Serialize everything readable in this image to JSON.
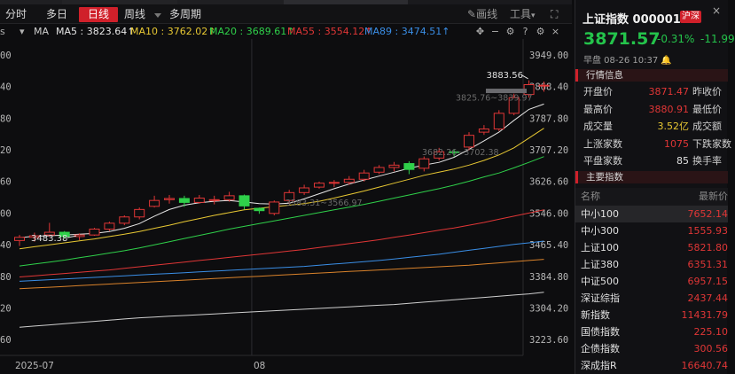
{
  "toolbar": {
    "tabs": [
      {
        "label": "分时",
        "active": false
      },
      {
        "label": "多日",
        "active": false
      },
      {
        "label": "日线",
        "active": true
      },
      {
        "label": "周线",
        "active": false
      },
      {
        "label": "多周期",
        "active": false
      }
    ],
    "draw_label": "画线",
    "tools_label": "工具"
  },
  "ma_bar": {
    "prefix": "MA",
    "items": [
      {
        "text": "MA5 : 3823.64↑",
        "color": "#e6e6e6"
      },
      {
        "text": "MA10 : 3762.02↑",
        "color": "#e8c833"
      },
      {
        "text": "MA20 : 3689.61↑",
        "color": "#2fd04a"
      },
      {
        "text": "MA55 : 3554.12↑",
        "color": "#e03636"
      },
      {
        "text": "MA89 : 3474.51↑",
        "color": "#3a8ee6"
      }
    ]
  },
  "chart_data": {
    "type": "candlestick",
    "y_ticks": [
      "3949.00",
      "3868.40",
      "3787.80",
      "3707.20",
      "3626.60",
      "3546.00",
      "3465.40",
      "3384.80",
      "3304.20",
      "3223.60"
    ],
    "ylim": [
      3183.3,
      3989.3
    ],
    "x_labels": [
      {
        "text": "2025-07",
        "index": 0
      },
      {
        "text": "08",
        "index": 15.5
      }
    ],
    "annotations": [
      {
        "text": "3883.56",
        "type": "high"
      },
      {
        "text": "3483.38",
        "type": "low"
      },
      {
        "text": "3825.76~3839.97",
        "type": "range"
      },
      {
        "text": "3583.31~3566.97",
        "type": "range"
      },
      {
        "text": "3682.26~3702.38",
        "type": "range"
      }
    ],
    "candles": [
      [
        3476,
        3484,
        3462,
        3490
      ],
      [
        3484,
        3488,
        3473,
        3496
      ],
      [
        3490,
        3497,
        3485,
        3521
      ],
      [
        3497,
        3486,
        3480,
        3500
      ],
      [
        3486,
        3490,
        3477,
        3494
      ],
      [
        3490,
        3505,
        3488,
        3508
      ],
      [
        3505,
        3520,
        3500,
        3524
      ],
      [
        3520,
        3536,
        3515,
        3540
      ],
      [
        3536,
        3555,
        3530,
        3560
      ],
      [
        3563,
        3578,
        3560,
        3590
      ],
      [
        3580,
        3583,
        3570,
        3592
      ],
      [
        3583,
        3573,
        3562,
        3590
      ],
      [
        3573,
        3584,
        3570,
        3592
      ],
      [
        3580,
        3580,
        3568,
        3590
      ],
      [
        3580,
        3590,
        3575,
        3600
      ],
      [
        3590,
        3564,
        3555,
        3593
      ],
      [
        3558,
        3552,
        3544,
        3560
      ],
      [
        3545,
        3574,
        3540,
        3578
      ],
      [
        3578,
        3598,
        3570,
        3605
      ],
      [
        3598,
        3610,
        3592,
        3618
      ],
      [
        3612,
        3622,
        3608,
        3626
      ],
      [
        3622,
        3624,
        3612,
        3630
      ],
      [
        3624,
        3632,
        3618,
        3640
      ],
      [
        3632,
        3648,
        3626,
        3656
      ],
      [
        3650,
        3662,
        3645,
        3668
      ],
      [
        3662,
        3668,
        3652,
        3676
      ],
      [
        3672,
        3657,
        3645,
        3678
      ],
      [
        3660,
        3684,
        3652,
        3690
      ],
      [
        3686,
        3702,
        3680,
        3712
      ],
      [
        3702,
        3700,
        3690,
        3708
      ],
      [
        3714,
        3744,
        3706,
        3752
      ],
      [
        3752,
        3760,
        3745,
        3770
      ],
      [
        3760,
        3800,
        3755,
        3808
      ],
      [
        3800,
        3840,
        3795,
        3850
      ],
      [
        3848,
        3873,
        3840,
        3884
      ],
      [
        3871.47,
        3871.57,
        3855,
        3880.91
      ]
    ],
    "series": [
      {
        "name": "MA5",
        "color": "#e6e6e6",
        "values": [
          3483,
          3487,
          3488,
          3490,
          3492,
          3494,
          3499,
          3507,
          3519,
          3538,
          3555,
          3566,
          3572,
          3576,
          3578,
          3574,
          3570,
          3569,
          3571,
          3582,
          3595,
          3608,
          3620,
          3630,
          3640,
          3650,
          3660,
          3668,
          3675,
          3688,
          3708,
          3730,
          3752,
          3782,
          3810,
          3823.64
        ]
      },
      {
        "name": "MA10",
        "color": "#e8c833",
        "values": [
          3455,
          3460,
          3465,
          3470,
          3475,
          3480,
          3486,
          3492,
          3499,
          3507,
          3515,
          3524,
          3532,
          3540,
          3547,
          3554,
          3558,
          3562,
          3566,
          3570,
          3576,
          3584,
          3593,
          3602,
          3612,
          3622,
          3632,
          3642,
          3650,
          3658,
          3668,
          3680,
          3694,
          3712,
          3737,
          3762.02
        ]
      },
      {
        "name": "MA20",
        "color": "#2fd04a",
        "values": [
          3411,
          3416,
          3421,
          3426,
          3432,
          3438,
          3444,
          3450,
          3457,
          3465,
          3473,
          3481,
          3489,
          3497,
          3505,
          3512,
          3519,
          3526,
          3533,
          3540,
          3547,
          3554,
          3561,
          3568,
          3576,
          3584,
          3592,
          3600,
          3608,
          3617,
          3627,
          3638,
          3648,
          3661,
          3675,
          3689.61
        ]
      },
      {
        "name": "MA55",
        "color": "#e03636",
        "values": [
          3383,
          3386,
          3389,
          3392,
          3395,
          3398,
          3401,
          3405,
          3409,
          3413,
          3417,
          3421,
          3425,
          3429,
          3433,
          3437,
          3441,
          3445,
          3449,
          3453,
          3458,
          3463,
          3468,
          3473,
          3478,
          3484,
          3490,
          3496,
          3502,
          3508,
          3515,
          3522,
          3530,
          3538,
          3546,
          3554.12
        ]
      },
      {
        "name": "MA89",
        "color": "#3a8ee6",
        "values": [
          3372,
          3374,
          3376,
          3378,
          3380,
          3382,
          3384,
          3386,
          3388,
          3390,
          3392,
          3394,
          3396,
          3398,
          3400,
          3402,
          3404,
          3406,
          3408,
          3410,
          3413,
          3416,
          3419,
          3422,
          3425,
          3429,
          3433,
          3437,
          3441,
          3446,
          3451,
          3456,
          3461,
          3466,
          3470,
          3474.51
        ]
      },
      {
        "color": "#d9822b",
        "values": [
          3353,
          3355,
          3357,
          3359,
          3361,
          3363,
          3365,
          3367,
          3369,
          3371,
          3373,
          3375,
          3377,
          3379,
          3381,
          3383,
          3385,
          3387,
          3389,
          3391,
          3393,
          3395,
          3397,
          3399,
          3401,
          3403,
          3405,
          3407,
          3409,
          3411,
          3413,
          3416,
          3419,
          3422,
          3425,
          3428
        ]
      },
      {
        "color": "#cfcfcf",
        "values": [
          3255,
          3258,
          3261,
          3264,
          3267,
          3270,
          3273,
          3276,
          3279,
          3281,
          3283,
          3285,
          3287,
          3289,
          3291,
          3293,
          3295,
          3297,
          3299,
          3301,
          3303,
          3305,
          3307,
          3309,
          3311,
          3313,
          3316,
          3319,
          3322,
          3325,
          3328,
          3331,
          3334,
          3337,
          3340,
          3344
        ]
      }
    ],
    "left_ticks": [
      "00",
      "40",
      "80",
      "20",
      "60",
      "00",
      "40",
      "80",
      "20",
      "60"
    ]
  },
  "right_panel": {
    "title": "上证指数 000001",
    "market_tag": "沪深",
    "price": "3871.57",
    "change_pct": "-0.31%",
    "change": "-11.99",
    "time_line": "早盘  08-26  10:37",
    "section_quote": "行情信息",
    "quote_rows": [
      {
        "label": "开盘价",
        "value": "3871.47",
        "value_color": "#e03636",
        "label2": "昨收价"
      },
      {
        "label": "最高价",
        "value": "3880.91",
        "value_color": "#e03636",
        "label2": "最低价"
      },
      {
        "label": "成交量",
        "value": "3.52亿",
        "value_color": "#e8c833",
        "label2": "成交额"
      },
      {
        "label": "上涨家数",
        "value": "1075",
        "value_color": "#e03636",
        "label2": "下跌家数"
      },
      {
        "label": "平盘家数",
        "value": "85",
        "value_color": "#e0e0e0",
        "label2": "换手率"
      }
    ],
    "section_index": "主要指数",
    "col_name": "名称",
    "col_latest": "最新价",
    "indices": [
      {
        "name": "中小100",
        "value": "7652.14"
      },
      {
        "name": "中小300",
        "value": "1555.93"
      },
      {
        "name": "上证100",
        "value": "5821.80"
      },
      {
        "name": "上证380",
        "value": "6351.31"
      },
      {
        "name": "中证500",
        "value": "6957.15"
      },
      {
        "name": "深证综指",
        "value": "2437.44"
      },
      {
        "name": "新指数",
        "value": "11431.79"
      },
      {
        "name": "国债指数",
        "value": "225.10"
      },
      {
        "name": "企债指数",
        "value": "300.56"
      },
      {
        "name": "深成指R",
        "value": "16640.74"
      }
    ]
  }
}
